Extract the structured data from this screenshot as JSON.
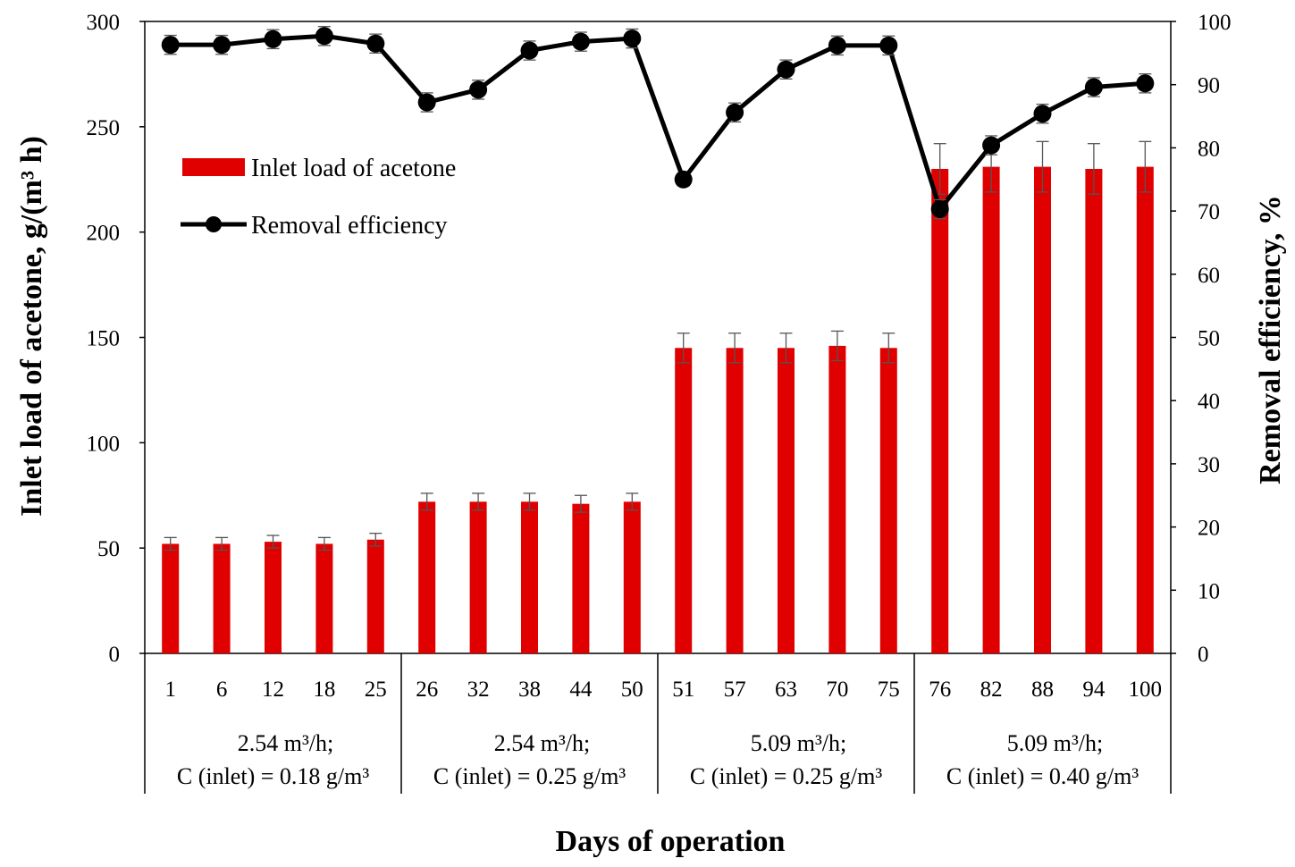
{
  "chart_data": {
    "type": "bar+line",
    "xlabel": "Days of operation",
    "ylabel_left": "Inlet load of acetone, g/(m³ h)",
    "ylabel_right": "Removal efficiency, %",
    "ylim_left": [
      0,
      300
    ],
    "ylim_right": [
      0,
      100
    ],
    "yticks_left": [
      "0",
      "50",
      "100",
      "150",
      "200",
      "250",
      "300"
    ],
    "yticks_right": [
      "0",
      "10",
      "20",
      "30",
      "40",
      "50",
      "60",
      "70",
      "80",
      "90",
      "100"
    ],
    "categories": [
      "1",
      "6",
      "12",
      "18",
      "25",
      "26",
      "32",
      "38",
      "44",
      "50",
      "51",
      "57",
      "63",
      "70",
      "75",
      "76",
      "82",
      "88",
      "94",
      "100"
    ],
    "series": [
      {
        "name": "Inlet load of acetone",
        "type": "bar",
        "axis": "left",
        "color": "#e00000",
        "values": [
          52,
          52,
          53,
          52,
          54,
          72,
          72,
          72,
          71,
          72,
          145,
          145,
          145,
          146,
          145,
          230,
          231,
          231,
          230,
          231
        ],
        "errors": [
          3,
          3,
          3,
          3,
          3,
          4,
          4,
          4,
          4,
          4,
          7,
          7,
          7,
          7,
          7,
          12,
          12,
          12,
          12,
          12
        ]
      },
      {
        "name": "Removal efficiency",
        "type": "line",
        "axis": "right",
        "color": "#000000",
        "values": [
          96.3,
          96.3,
          97.2,
          97.7,
          96.5,
          87.2,
          89.2,
          95.4,
          96.8,
          97.3,
          75.0,
          85.6,
          92.4,
          96.2,
          96.2,
          70.3,
          80.4,
          85.4,
          89.6,
          90.2
        ],
        "errors": [
          1.5,
          1.5,
          1.5,
          1.5,
          1.5,
          1.5,
          1.5,
          1.5,
          1.5,
          1.5,
          1.0,
          1.5,
          1.5,
          1.5,
          1.5,
          1.5,
          1.5,
          1.5,
          1.5,
          1.5
        ]
      }
    ],
    "groups": [
      {
        "line1": "2.54 m³/h;",
        "line2": "C (inlet) = 0.18 g/m³",
        "count": 5
      },
      {
        "line1": "2.54 m³/h;",
        "line2": "C (inlet) = 0.25 g/m³",
        "count": 5
      },
      {
        "line1": "5.09 m³/h;",
        "line2": "C (inlet) = 0.25 g/m³",
        "count": 5
      },
      {
        "line1": "5.09 m³/h;",
        "line2": "C (inlet) = 0.40 g/m³",
        "count": 5
      }
    ],
    "legend": {
      "position": "top-left",
      "entries": [
        "Inlet load of acetone",
        "Removal efficiency"
      ]
    }
  }
}
